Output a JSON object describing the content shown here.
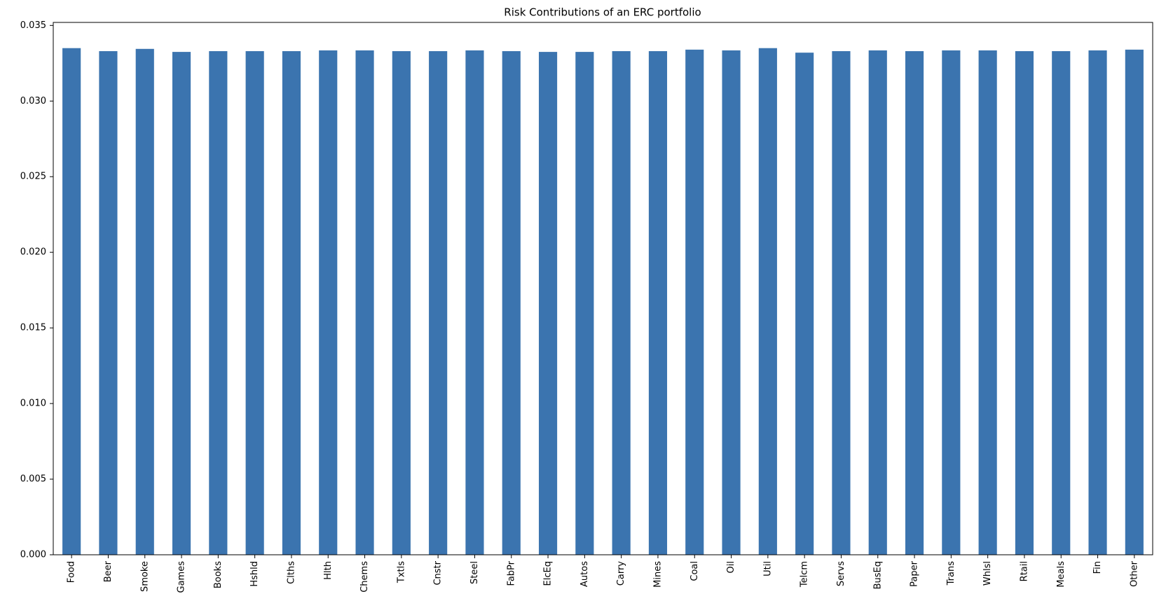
{
  "chart_data": {
    "type": "bar",
    "title": "Risk Contributions of an ERC portfolio",
    "categories": [
      "Food",
      "Beer",
      "Smoke",
      "Games",
      "Books",
      "Hshld",
      "Clths",
      "Hlth",
      "Chems",
      "Txtls",
      "Cnstr",
      "Steel",
      "FabPr",
      "ElcEq",
      "Autos",
      "Carry",
      "Mines",
      "Coal",
      "Oil",
      "Util",
      "Telcm",
      "Servs",
      "BusEq",
      "Paper",
      "Trans",
      "Whlsl",
      "Rtail",
      "Meals",
      "Fin",
      "Other"
    ],
    "values": [
      0.0335,
      0.0333,
      0.03345,
      0.03325,
      0.0333,
      0.0333,
      0.0333,
      0.03335,
      0.03335,
      0.0333,
      0.0333,
      0.03335,
      0.0333,
      0.03325,
      0.03325,
      0.0333,
      0.0333,
      0.0334,
      0.03335,
      0.0335,
      0.0332,
      0.0333,
      0.03335,
      0.0333,
      0.03335,
      0.03335,
      0.0333,
      0.0333,
      0.03335,
      0.0334
    ],
    "color": "#3b74af",
    "ylim": [
      0,
      0.0352
    ],
    "yticks": [
      {
        "value": 0,
        "label": "0.000"
      },
      0.005,
      {
        "value": 0.01,
        "label": "0.010"
      },
      0.015,
      {
        "value": 0.02,
        "label": "0.020"
      },
      0.025,
      {
        "value": 0.03,
        "label": "0.030"
      },
      0.035
    ],
    "grid": false
  }
}
